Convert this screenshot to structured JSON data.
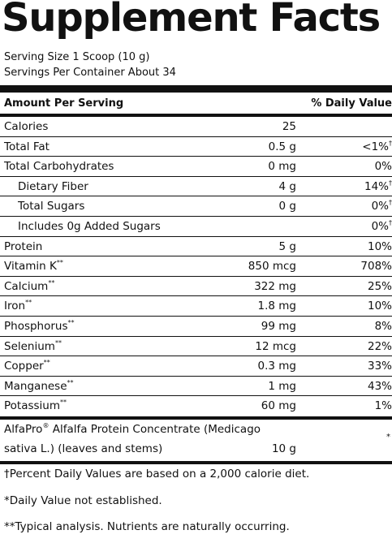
{
  "title": "Supplement Facts",
  "serving_size": "Serving Size 1 Scoop (10 g)",
  "servings_per_container": "Servings Per Container About 34",
  "header": {
    "amount": "Amount Per Serving",
    "dv": "% Daily Value"
  },
  "rows": [
    {
      "name": "Calories",
      "mark": "",
      "amount": "25",
      "dv": "",
      "dv_mark": ""
    },
    {
      "name": "Total Fat",
      "mark": "",
      "amount": "0.5 g",
      "dv": "<1%",
      "dv_mark": "†"
    },
    {
      "name": "Total Carbohydrates",
      "mark": "",
      "amount": "0 mg",
      "dv": "0%",
      "dv_mark": ""
    },
    {
      "name": "Dietary Fiber",
      "mark": "",
      "amount": "4 g",
      "dv": "14%",
      "dv_mark": "†"
    },
    {
      "name": "Total Sugars",
      "mark": "",
      "amount": "0 g",
      "dv": "0%",
      "dv_mark": "†"
    },
    {
      "name": "Includes 0g Added Sugars",
      "mark": "",
      "amount": "",
      "dv": "0%",
      "dv_mark": "†"
    },
    {
      "name": "Protein",
      "mark": "",
      "amount": "5 g",
      "dv": "10%",
      "dv_mark": ""
    },
    {
      "name": "Vitamin K",
      "mark": "**",
      "amount": "850 mcg",
      "dv": "708%",
      "dv_mark": ""
    },
    {
      "name": "Calcium",
      "mark": "**",
      "amount": "322 mg",
      "dv": "25%",
      "dv_mark": ""
    },
    {
      "name": "Iron",
      "mark": "**",
      "amount": "1.8 mg",
      "dv": "10%",
      "dv_mark": ""
    },
    {
      "name": "Phosphorus",
      "mark": "**",
      "amount": "99 mg",
      "dv": "8%",
      "dv_mark": ""
    },
    {
      "name": "Selenium",
      "mark": "**",
      "amount": "12 mcg",
      "dv": "22%",
      "dv_mark": ""
    },
    {
      "name": "Copper",
      "mark": "**",
      "amount": "0.3 mg",
      "dv": "33%",
      "dv_mark": ""
    },
    {
      "name": "Manganese",
      "mark": "**",
      "amount": "1 mg",
      "dv": "43%",
      "dv_mark": ""
    },
    {
      "name": "Potassium",
      "mark": "**",
      "amount": "60 mg",
      "dv": "1%",
      "dv_mark": ""
    }
  ],
  "ingredient": {
    "line1_brand": "AlfaPro",
    "line1_mark": "®",
    "line1_rest": " Alfalfa Protein Concentrate (Medicago",
    "line2": "sativa L.) (leaves and stems)",
    "amount": "10 g",
    "dv": "*"
  },
  "footnotes": {
    "percent_dv": "†Percent Daily Values are based on a 2,000 calorie diet.",
    "not_established": "*Daily Value not established.",
    "typical": "**Typical analysis. Nutrients are naturally occurring."
  }
}
